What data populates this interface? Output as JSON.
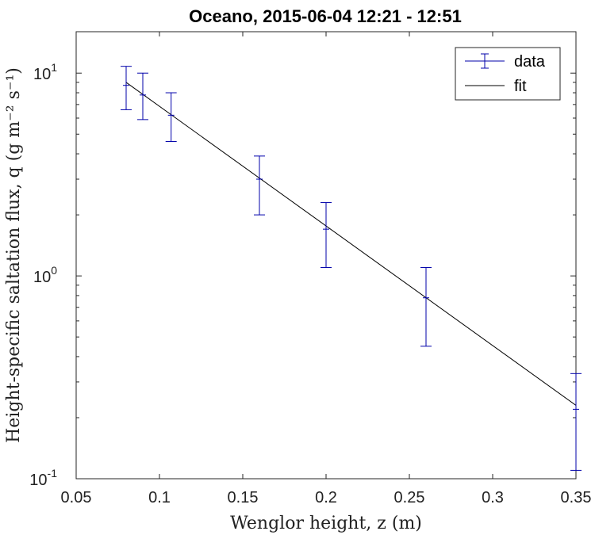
{
  "chart_data": {
    "type": "scatter",
    "title": "Oceano, 2015-06-04 12:21 - 12:51",
    "xlabel": "Wenglor height, z (m)",
    "ylabel": "Height-specific saltation flux, q (g m⁻² s⁻¹)",
    "xlim": [
      0.05,
      0.35
    ],
    "ylim": [
      0.1,
      16
    ],
    "yscale": "log",
    "x_ticks": [
      0.05,
      0.1,
      0.15,
      0.2,
      0.25,
      0.3,
      0.35
    ],
    "x_tick_labels": [
      "0.05",
      "0.1",
      "0.15",
      "0.2",
      "0.25",
      "0.3",
      "0.35"
    ],
    "y_ticks": [
      0.1,
      1,
      10
    ],
    "y_tick_labels": [
      {
        "base": "10",
        "exp": "-1"
      },
      {
        "base": "10",
        "exp": "0"
      },
      {
        "base": "10",
        "exp": "1"
      }
    ],
    "legend": {
      "location": "top-right",
      "entries": [
        "data",
        "fit"
      ]
    },
    "series": [
      {
        "name": "data",
        "style": "errorbar",
        "color": "#0000aa",
        "x": [
          0.08,
          0.09,
          0.107,
          0.16,
          0.2,
          0.26,
          0.35
        ],
        "y": [
          8.7,
          7.8,
          6.2,
          3.0,
          1.7,
          0.78,
          0.22
        ],
        "y_lower": [
          6.6,
          5.9,
          4.6,
          2.0,
          1.1,
          0.45,
          0.11
        ],
        "y_upper": [
          10.8,
          10.0,
          8.0,
          3.9,
          2.3,
          1.1,
          0.33
        ]
      },
      {
        "name": "fit",
        "style": "line",
        "color": "#000000",
        "x": [
          0.08,
          0.35
        ],
        "y": [
          9.0,
          0.23
        ]
      }
    ]
  }
}
